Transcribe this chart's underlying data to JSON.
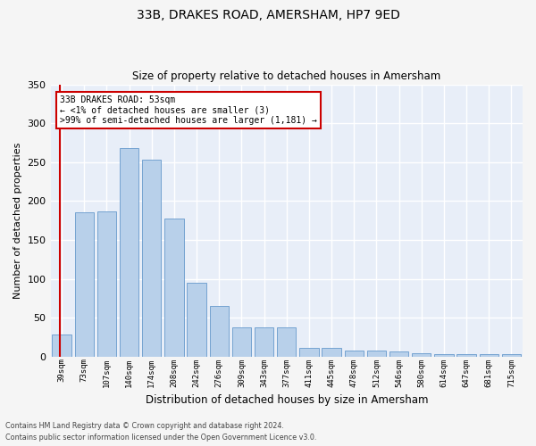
{
  "title": "33B, DRAKES ROAD, AMERSHAM, HP7 9ED",
  "subtitle": "Size of property relative to detached houses in Amersham",
  "xlabel": "Distribution of detached houses by size in Amersham",
  "ylabel": "Number of detached properties",
  "bar_color": "#b8d0ea",
  "bar_edge_color": "#6699cc",
  "background_color": "#e8eef8",
  "grid_color": "#ffffff",
  "fig_facecolor": "#f5f5f5",
  "categories": [
    "39sqm",
    "73sqm",
    "107sqm",
    "140sqm",
    "174sqm",
    "208sqm",
    "242sqm",
    "276sqm",
    "309sqm",
    "343sqm",
    "377sqm",
    "411sqm",
    "445sqm",
    "478sqm",
    "512sqm",
    "546sqm",
    "580sqm",
    "614sqm",
    "647sqm",
    "681sqm",
    "715sqm"
  ],
  "values": [
    29,
    186,
    187,
    268,
    253,
    178,
    95,
    65,
    38,
    38,
    38,
    12,
    12,
    8,
    8,
    7,
    5,
    4,
    4,
    3,
    3
  ],
  "ylim": [
    0,
    350
  ],
  "yticks": [
    0,
    50,
    100,
    150,
    200,
    250,
    300,
    350
  ],
  "annotation_text": "33B DRAKES ROAD: 53sqm\n← <1% of detached houses are smaller (3)\n>99% of semi-detached houses are larger (1,181) →",
  "annotation_box_color": "#ffffff",
  "annotation_box_edge_color": "#cc0000",
  "vline_color": "#cc0000",
  "footer_line1": "Contains HM Land Registry data © Crown copyright and database right 2024.",
  "footer_line2": "Contains public sector information licensed under the Open Government Licence v3.0."
}
